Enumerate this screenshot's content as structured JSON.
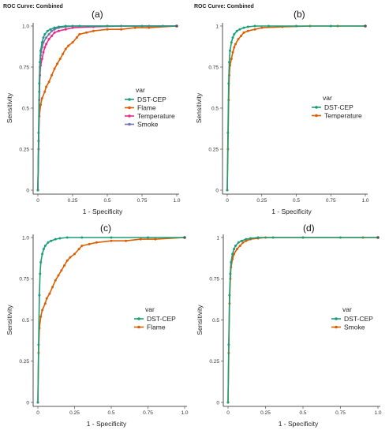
{
  "chart_data": [
    {
      "id": "a",
      "type": "line",
      "header": "ROC Curve: Combined",
      "panel_label": "(a)",
      "xlabel": "1 - Specificity",
      "ylabel": "Sensitivity",
      "xlim": [
        0,
        1
      ],
      "ylim": [
        0,
        1
      ],
      "x_ticks": [
        "0",
        "0.25",
        "0.5",
        "0.75",
        "1.0"
      ],
      "y_ticks": [
        "0",
        "0.25",
        "0.5",
        "0.75",
        "1.0"
      ],
      "legend_title": "var",
      "legend_placement": "right-middle",
      "grid": false,
      "series": [
        {
          "name": "Flame",
          "color": "#d95f02",
          "x": [
            0.0,
            0.005,
            0.01,
            0.02,
            0.03,
            0.05,
            0.06,
            0.08,
            0.1,
            0.12,
            0.14,
            0.16,
            0.18,
            0.2,
            0.22,
            0.25,
            0.28,
            0.3,
            0.35,
            0.4,
            0.5,
            0.6,
            0.7,
            0.8,
            1.0
          ],
          "y": [
            0.0,
            0.3,
            0.45,
            0.52,
            0.56,
            0.6,
            0.63,
            0.66,
            0.7,
            0.74,
            0.77,
            0.8,
            0.83,
            0.86,
            0.88,
            0.9,
            0.93,
            0.95,
            0.96,
            0.97,
            0.98,
            0.98,
            0.99,
            0.99,
            1.0
          ]
        },
        {
          "name": "Temperature",
          "color": "#e7298a",
          "x": [
            0.0,
            0.005,
            0.01,
            0.015,
            0.02,
            0.03,
            0.04,
            0.05,
            0.06,
            0.08,
            0.1,
            0.12,
            0.15,
            0.2,
            0.25,
            0.4,
            0.6,
            0.8,
            1.0
          ],
          "y": [
            0.0,
            0.25,
            0.55,
            0.7,
            0.76,
            0.8,
            0.84,
            0.87,
            0.89,
            0.92,
            0.94,
            0.96,
            0.97,
            0.98,
            0.99,
            0.995,
            1.0,
            1.0,
            1.0
          ]
        },
        {
          "name": "Smoke",
          "color": "#7570b3",
          "x": [
            0.0,
            0.005,
            0.01,
            0.015,
            0.02,
            0.03,
            0.04,
            0.06,
            0.08,
            0.1,
            0.12,
            0.15,
            0.2,
            0.25,
            0.5,
            0.9,
            1.0
          ],
          "y": [
            0.0,
            0.3,
            0.6,
            0.75,
            0.82,
            0.87,
            0.9,
            0.93,
            0.95,
            0.97,
            0.98,
            0.99,
            0.995,
            1.0,
            1.0,
            1.0,
            1.0
          ]
        },
        {
          "name": "DST-CEP",
          "color": "#1b9e77",
          "x": [
            0.0,
            0.005,
            0.01,
            0.015,
            0.02,
            0.03,
            0.04,
            0.05,
            0.07,
            0.09,
            0.12,
            0.15,
            0.2,
            0.3,
            0.5,
            0.75,
            1.0
          ],
          "y": [
            0.0,
            0.35,
            0.65,
            0.78,
            0.85,
            0.9,
            0.93,
            0.95,
            0.97,
            0.98,
            0.99,
            0.995,
            1.0,
            1.0,
            1.0,
            1.0,
            1.0
          ]
        }
      ]
    },
    {
      "id": "b",
      "type": "line",
      "header": "ROC Curve: Combined",
      "panel_label": "(b)",
      "xlabel": "1 - Specificity",
      "ylabel": "Sensitivity",
      "xlim": [
        0,
        1
      ],
      "ylim": [
        0,
        1
      ],
      "x_ticks": [
        "0",
        "0.25",
        "0.5",
        "0.75",
        "1.0"
      ],
      "y_ticks": [
        "0",
        "0.25",
        "0.5",
        "0.75",
        "1"
      ],
      "legend_title": "var",
      "legend_placement": "right-middle",
      "grid": false,
      "series": [
        {
          "name": "Temperature",
          "color": "#d95f02",
          "x": [
            0.0,
            0.005,
            0.01,
            0.015,
            0.02,
            0.03,
            0.04,
            0.05,
            0.06,
            0.08,
            0.1,
            0.12,
            0.15,
            0.2,
            0.25,
            0.4,
            0.6,
            0.8,
            1.0
          ],
          "y": [
            0.0,
            0.25,
            0.55,
            0.7,
            0.76,
            0.8,
            0.84,
            0.87,
            0.89,
            0.92,
            0.94,
            0.96,
            0.97,
            0.98,
            0.99,
            0.995,
            1.0,
            1.0,
            1.0
          ]
        },
        {
          "name": "DST-CEP",
          "color": "#1b9e77",
          "x": [
            0.0,
            0.005,
            0.01,
            0.015,
            0.02,
            0.03,
            0.04,
            0.05,
            0.07,
            0.09,
            0.12,
            0.15,
            0.2,
            0.3,
            0.5,
            0.75,
            1.0
          ],
          "y": [
            0.0,
            0.35,
            0.65,
            0.78,
            0.85,
            0.9,
            0.93,
            0.95,
            0.97,
            0.98,
            0.99,
            0.995,
            1.0,
            1.0,
            1.0,
            1.0,
            1.0
          ]
        }
      ]
    },
    {
      "id": "c",
      "type": "line",
      "header": "",
      "panel_label": "(c)",
      "xlabel": "1 - Specificity",
      "ylabel": "Sensitivity",
      "xlim": [
        0,
        1
      ],
      "ylim": [
        0,
        1
      ],
      "x_ticks": [
        "0",
        "0.25",
        "0.5",
        "0.75",
        "1.0"
      ],
      "y_ticks": [
        "0",
        "0.25",
        "0.5",
        "0.75",
        "1.0"
      ],
      "legend_title": "var",
      "legend_placement": "right-middle",
      "grid": false,
      "series": [
        {
          "name": "Flame",
          "color": "#d95f02",
          "x": [
            0.0,
            0.005,
            0.01,
            0.02,
            0.03,
            0.05,
            0.06,
            0.08,
            0.1,
            0.12,
            0.14,
            0.16,
            0.18,
            0.2,
            0.22,
            0.25,
            0.28,
            0.3,
            0.35,
            0.4,
            0.5,
            0.6,
            0.7,
            0.8,
            1.0
          ],
          "y": [
            0.0,
            0.3,
            0.45,
            0.52,
            0.56,
            0.6,
            0.63,
            0.66,
            0.7,
            0.74,
            0.77,
            0.8,
            0.83,
            0.86,
            0.88,
            0.9,
            0.93,
            0.95,
            0.96,
            0.97,
            0.98,
            0.98,
            0.99,
            0.99,
            1.0
          ]
        },
        {
          "name": "DST-CEP",
          "color": "#1b9e77",
          "x": [
            0.0,
            0.005,
            0.01,
            0.015,
            0.02,
            0.03,
            0.04,
            0.05,
            0.07,
            0.09,
            0.12,
            0.15,
            0.2,
            0.3,
            0.5,
            0.75,
            1.0
          ],
          "y": [
            0.0,
            0.35,
            0.65,
            0.78,
            0.85,
            0.9,
            0.93,
            0.95,
            0.97,
            0.98,
            0.99,
            0.995,
            1.0,
            1.0,
            1.0,
            1.0,
            1.0
          ]
        }
      ]
    },
    {
      "id": "d",
      "type": "line",
      "header": "",
      "panel_label": "(d)",
      "xlabel": "1 - Specificity",
      "ylabel": "Sensitivity",
      "xlim": [
        0,
        1
      ],
      "ylim": [
        0,
        1
      ],
      "x_ticks": [
        "0",
        "0.25",
        "0.5",
        "0.75",
        "1.0"
      ],
      "y_ticks": [
        "0",
        "0.25",
        "0.5",
        "0.75",
        "1"
      ],
      "legend_title": "var",
      "legend_placement": "right-middle",
      "grid": false,
      "series": [
        {
          "name": "Smoke",
          "color": "#d95f02",
          "x": [
            0.0,
            0.005,
            0.01,
            0.015,
            0.02,
            0.03,
            0.04,
            0.06,
            0.08,
            0.1,
            0.12,
            0.15,
            0.2,
            0.25,
            0.5,
            0.9,
            1.0
          ],
          "y": [
            0.0,
            0.3,
            0.6,
            0.75,
            0.82,
            0.87,
            0.9,
            0.93,
            0.95,
            0.97,
            0.98,
            0.99,
            0.995,
            1.0,
            1.0,
            1.0,
            1.0
          ]
        },
        {
          "name": "DST-CEP",
          "color": "#1b9e77",
          "x": [
            0.0,
            0.005,
            0.01,
            0.015,
            0.02,
            0.03,
            0.04,
            0.05,
            0.07,
            0.09,
            0.12,
            0.15,
            0.2,
            0.3,
            0.5,
            0.75,
            1.0
          ],
          "y": [
            0.0,
            0.35,
            0.65,
            0.78,
            0.85,
            0.9,
            0.93,
            0.95,
            0.97,
            0.98,
            0.99,
            0.995,
            1.0,
            1.0,
            1.0,
            1.0,
            1.0
          ]
        }
      ]
    }
  ]
}
